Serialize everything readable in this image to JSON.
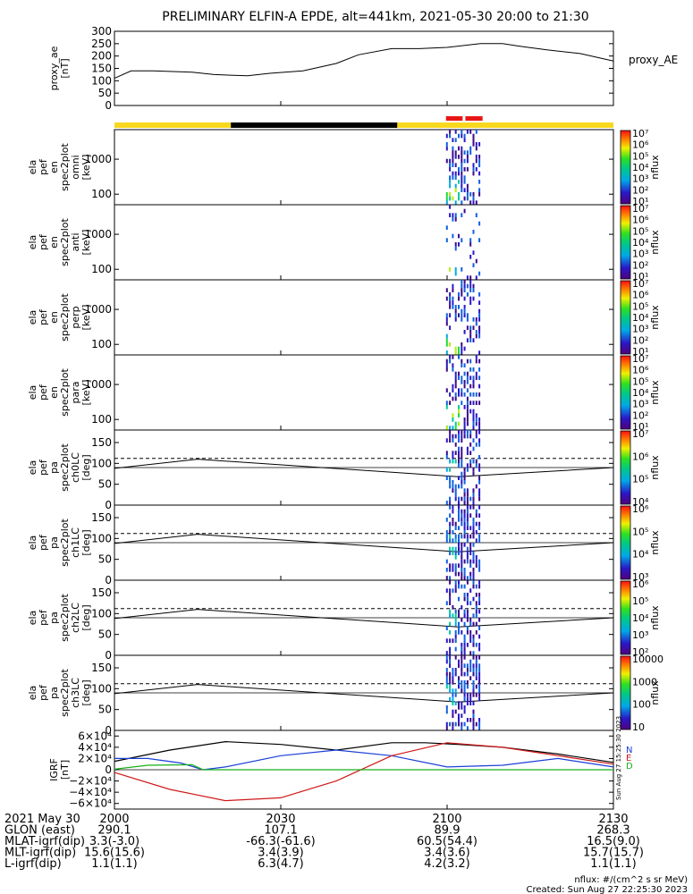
{
  "title": "PRELIMINARY ELFIN-A EPDE, alt=441km, 2021-05-30 20:00 to 21:30",
  "colors": {
    "sunlit": "#f8d81e",
    "shadow": "#000000",
    "science": "#e81616"
  },
  "chart_data": [
    {
      "name": "proxy_ae",
      "type": "line",
      "ylabel": [
        "proxy_ae",
        "[nT]"
      ],
      "right_label": "proxy_AE",
      "ylim": [
        0,
        300
      ],
      "yticks": [
        "0",
        "50",
        "100",
        "150",
        "200",
        "250",
        "300"
      ],
      "x": [
        0,
        3,
        7,
        14,
        18,
        24,
        28,
        34,
        40,
        44,
        50,
        55,
        60,
        66,
        70,
        73,
        78,
        84,
        90
      ],
      "y": [
        110,
        140,
        140,
        135,
        125,
        120,
        130,
        140,
        170,
        205,
        230,
        230,
        235,
        250,
        250,
        240,
        225,
        210,
        180
      ]
    },
    {
      "name": "ela_pef_en_spec2plot_omni",
      "type": "spectrogram",
      "ylabel": [
        "ela",
        "pef",
        "en",
        "spec2plot",
        "omni",
        "[keV]"
      ],
      "yticks": [
        "100",
        "1000"
      ],
      "ylog": [
        50,
        7000
      ],
      "colorbar": {
        "label": "nflux",
        "ticks": [
          "10¹",
          "10²",
          "10³",
          "10⁴",
          "10⁵",
          "10⁶",
          "10⁷"
        ]
      }
    },
    {
      "name": "ela_pef_en_spec2plot_anti",
      "type": "spectrogram",
      "ylabel": [
        "ela",
        "pef",
        "en",
        "spec2plot",
        "anti",
        "[keV]"
      ],
      "yticks": [
        "100",
        "1000"
      ],
      "ylog": [
        50,
        7000
      ],
      "colorbar": {
        "label": "nflux",
        "ticks": [
          "10¹",
          "10²",
          "10³",
          "10⁴",
          "10⁵",
          "10⁶",
          "10⁷"
        ]
      }
    },
    {
      "name": "ela_pef_en_spec2plot_perp",
      "type": "spectrogram",
      "ylabel": [
        "ela",
        "pef",
        "en",
        "spec2plot",
        "perp",
        "[keV]"
      ],
      "yticks": [
        "100",
        "1000"
      ],
      "ylog": [
        50,
        7000
      ],
      "colorbar": {
        "label": "nflux",
        "ticks": [
          "10¹",
          "10²",
          "10³",
          "10⁴",
          "10⁵",
          "10⁶",
          "10⁷"
        ]
      }
    },
    {
      "name": "ela_pef_en_spec2plot_para",
      "type": "spectrogram",
      "ylabel": [
        "ela",
        "pef",
        "en",
        "spec2plot",
        "para",
        "[keV]"
      ],
      "yticks": [
        "100",
        "1000"
      ],
      "ylog": [
        50,
        7000
      ],
      "colorbar": {
        "label": "nflux",
        "ticks": [
          "10¹",
          "10²",
          "10³",
          "10⁴",
          "10⁵",
          "10⁶",
          "10⁷"
        ]
      }
    },
    {
      "name": "ela_pef_pa_spec2plot_ch0LC",
      "type": "pitch-angle",
      "ylabel": [
        "ela",
        "pef",
        "pa",
        "spec2plot",
        "ch0LC",
        "[deg]"
      ],
      "ylim": [
        0,
        180
      ],
      "yticks": [
        "0",
        "50",
        "100",
        "150"
      ],
      "colorbar": {
        "label": "nflux",
        "ticks": [
          "10⁴",
          "10⁵",
          "10⁶",
          "10⁷"
        ]
      }
    },
    {
      "name": "ela_pef_pa_spec2plot_ch1LC",
      "type": "pitch-angle",
      "ylabel": [
        "ela",
        "pef",
        "pa",
        "spec2plot",
        "ch1LC",
        "[deg]"
      ],
      "ylim": [
        0,
        180
      ],
      "yticks": [
        "0",
        "50",
        "100",
        "150"
      ],
      "colorbar": {
        "label": "nflux",
        "ticks": [
          "10³",
          "10⁴",
          "10⁵",
          "10⁶"
        ]
      }
    },
    {
      "name": "ela_pef_pa_spec2plot_ch2LC",
      "type": "pitch-angle",
      "ylabel": [
        "ela",
        "pef",
        "pa",
        "spec2plot",
        "ch2LC",
        "[deg]"
      ],
      "ylim": [
        0,
        180
      ],
      "yticks": [
        "0",
        "50",
        "100",
        "150"
      ],
      "colorbar": {
        "label": "nflux",
        "ticks": [
          "10²",
          "10³",
          "10⁴",
          "10⁵",
          "10⁶"
        ]
      }
    },
    {
      "name": "ela_pef_pa_spec2plot_ch3LC",
      "type": "pitch-angle",
      "ylabel": [
        "ela",
        "pef",
        "pa",
        "spec2plot",
        "ch3LC",
        "[deg]"
      ],
      "ylim": [
        0,
        180
      ],
      "yticks": [
        "0",
        "50",
        "100",
        "150"
      ],
      "colorbar": {
        "label": "nflux",
        "ticks": [
          "10",
          "100",
          "1000",
          "10000"
        ]
      }
    },
    {
      "name": "igrf",
      "type": "line",
      "ylabel": [
        "IGRF",
        "[nT]"
      ],
      "ylim": [
        -70000,
        70000
      ],
      "yticks": [
        "−6×10⁴",
        "−4×10⁴",
        "−2×10⁴",
        "0",
        "2×10⁴",
        "4×10⁴",
        "6×10⁴"
      ],
      "legend": [
        "N",
        "E",
        "D"
      ],
      "stamp": "Sun Aug 27 15:25:30 2023",
      "series": [
        {
          "name": "N",
          "color": "#000000",
          "x": [
            0,
            10,
            20,
            30,
            40,
            50,
            56,
            62,
            70,
            80,
            90
          ],
          "y": [
            15000,
            35000,
            50000,
            45000,
            35000,
            48000,
            48000,
            45000,
            40000,
            28000,
            13000
          ]
        },
        {
          "name": "E",
          "color": "#1a3fd6",
          "x": [
            0,
            6,
            12,
            16,
            20,
            30,
            40,
            50,
            60,
            70,
            80,
            90
          ],
          "y": [
            20000,
            20000,
            12000,
            0,
            5000,
            25000,
            35000,
            25000,
            5000,
            8000,
            20000,
            5000
          ]
        },
        {
          "name": "D",
          "color": "#d01818",
          "x": [
            0,
            10,
            20,
            30,
            40,
            50,
            60,
            70,
            80,
            90
          ],
          "y": [
            -5000,
            -35000,
            -55000,
            -50000,
            -20000,
            25000,
            48000,
            40000,
            25000,
            10000
          ]
        }
      ]
    }
  ],
  "time_axis": {
    "ticks": [
      "2000",
      "2030",
      "2100",
      "2130"
    ],
    "rows": [
      {
        "label": "2021 May 30",
        "values": [
          "",
          "",
          "",
          ""
        ]
      },
      {
        "label": "GLON (east)",
        "values": [
          "290.1",
          "107.1",
          "89.9",
          "268.3"
        ]
      },
      {
        "label": "MLAT-igrf(dip)",
        "values": [
          "3.3(-3.0)",
          "-66.3(-61.6)",
          "60.5(54.4)",
          "16.5(9.0)"
        ]
      },
      {
        "label": "MLT-igrf(dip)",
        "values": [
          "15.6(15.6)",
          "3.4(3.9)",
          "3.4(3.6)",
          "15.7(15.7)"
        ]
      },
      {
        "label": "L-igrf(dip)",
        "values": [
          "1.1(1.1)",
          "6.3(4.7)",
          "4.2(3.2)",
          "1.1(1.1)"
        ]
      }
    ]
  },
  "footer": {
    "units": "nflux: #/(cm^2 s sr MeV)",
    "created": "Created: Sun Aug 27 22:25:30 2023"
  }
}
